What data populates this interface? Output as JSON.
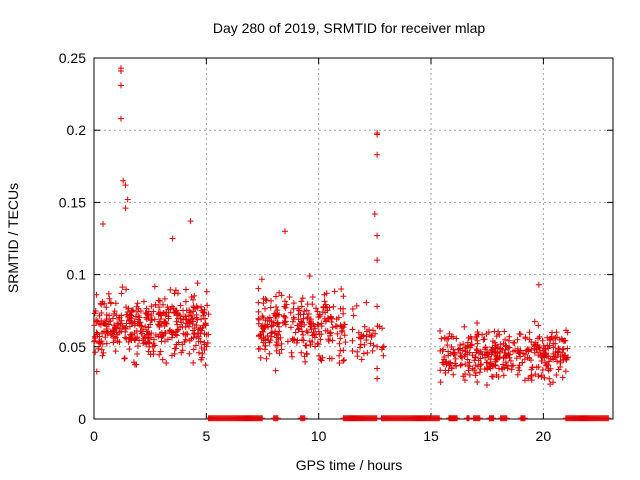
{
  "chart_data": {
    "type": "scatter",
    "title": "Day 280 of 2019, SRMTID for receiver mlap",
    "xlabel": "GPS time / hours",
    "ylabel": "SRMTID / TECUs",
    "xlim": [
      0,
      23.1
    ],
    "ylim": [
      0,
      0.25
    ],
    "xticks": [
      0,
      5,
      10,
      15,
      20
    ],
    "xtick_labels": [
      "0",
      "5",
      "10",
      "15",
      "20"
    ],
    "yticks": [
      0,
      0.05,
      0.1,
      0.15,
      0.2,
      0.25
    ],
    "ytick_labels": [
      "0",
      "0.05",
      "0.1",
      "0.15",
      "0.2",
      "0.25"
    ],
    "grid": true,
    "marker": "+",
    "color": "#e00000",
    "series": [
      {
        "name": "SRMTID",
        "clusters": [
          {
            "x_range": [
              0.0,
              5.1
            ],
            "y_center": 0.065,
            "y_spread": 0.025,
            "count": 420
          },
          {
            "x_range": [
              7.3,
              11.2
            ],
            "y_center": 0.065,
            "y_spread": 0.025,
            "count": 260
          },
          {
            "x_range": [
              11.5,
              12.9
            ],
            "y_center": 0.055,
            "y_spread": 0.02,
            "count": 40
          },
          {
            "x_range": [
              15.4,
              21.1
            ],
            "y_center": 0.045,
            "y_spread": 0.02,
            "count": 380
          }
        ],
        "outliers": [
          {
            "x": 1.2,
            "y": 0.243
          },
          {
            "x": 1.2,
            "y": 0.241
          },
          {
            "x": 1.2,
            "y": 0.231
          },
          {
            "x": 1.2,
            "y": 0.208
          },
          {
            "x": 1.3,
            "y": 0.165
          },
          {
            "x": 1.4,
            "y": 0.162
          },
          {
            "x": 1.5,
            "y": 0.152
          },
          {
            "x": 1.4,
            "y": 0.146
          },
          {
            "x": 0.4,
            "y": 0.135
          },
          {
            "x": 4.3,
            "y": 0.137
          },
          {
            "x": 3.5,
            "y": 0.125
          },
          {
            "x": 8.5,
            "y": 0.13
          },
          {
            "x": 12.6,
            "y": 0.198
          },
          {
            "x": 12.6,
            "y": 0.197
          },
          {
            "x": 12.6,
            "y": 0.183
          },
          {
            "x": 12.5,
            "y": 0.142
          },
          {
            "x": 12.6,
            "y": 0.127
          },
          {
            "x": 12.6,
            "y": 0.11
          },
          {
            "x": 12.6,
            "y": 0.078
          },
          {
            "x": 12.7,
            "y": 0.064
          },
          {
            "x": 12.6,
            "y": 0.05
          },
          {
            "x": 12.6,
            "y": 0.035
          },
          {
            "x": 12.6,
            "y": 0.028
          },
          {
            "x": 19.8,
            "y": 0.093
          },
          {
            "x": 11.1,
            "y": 0.085
          },
          {
            "x": 11.0,
            "y": 0.09
          },
          {
            "x": 9.6,
            "y": 0.099
          }
        ],
        "zero_segments": [
          {
            "x_start": 5.1,
            "x_end": 7.5
          },
          {
            "x_start": 8.0,
            "x_end": 8.2
          },
          {
            "x_start": 9.2,
            "x_end": 9.4
          },
          {
            "x_start": 11.1,
            "x_end": 12.6
          },
          {
            "x_start": 12.8,
            "x_end": 15.4
          },
          {
            "x_start": 15.8,
            "x_end": 16.2
          },
          {
            "x_start": 16.6,
            "x_end": 16.7
          },
          {
            "x_start": 16.9,
            "x_end": 17.2
          },
          {
            "x_start": 17.6,
            "x_end": 17.8
          },
          {
            "x_start": 18.1,
            "x_end": 18.4
          },
          {
            "x_start": 19.0,
            "x_end": 19.2
          },
          {
            "x_start": 21.0,
            "x_end": 22.9
          }
        ]
      }
    ]
  }
}
